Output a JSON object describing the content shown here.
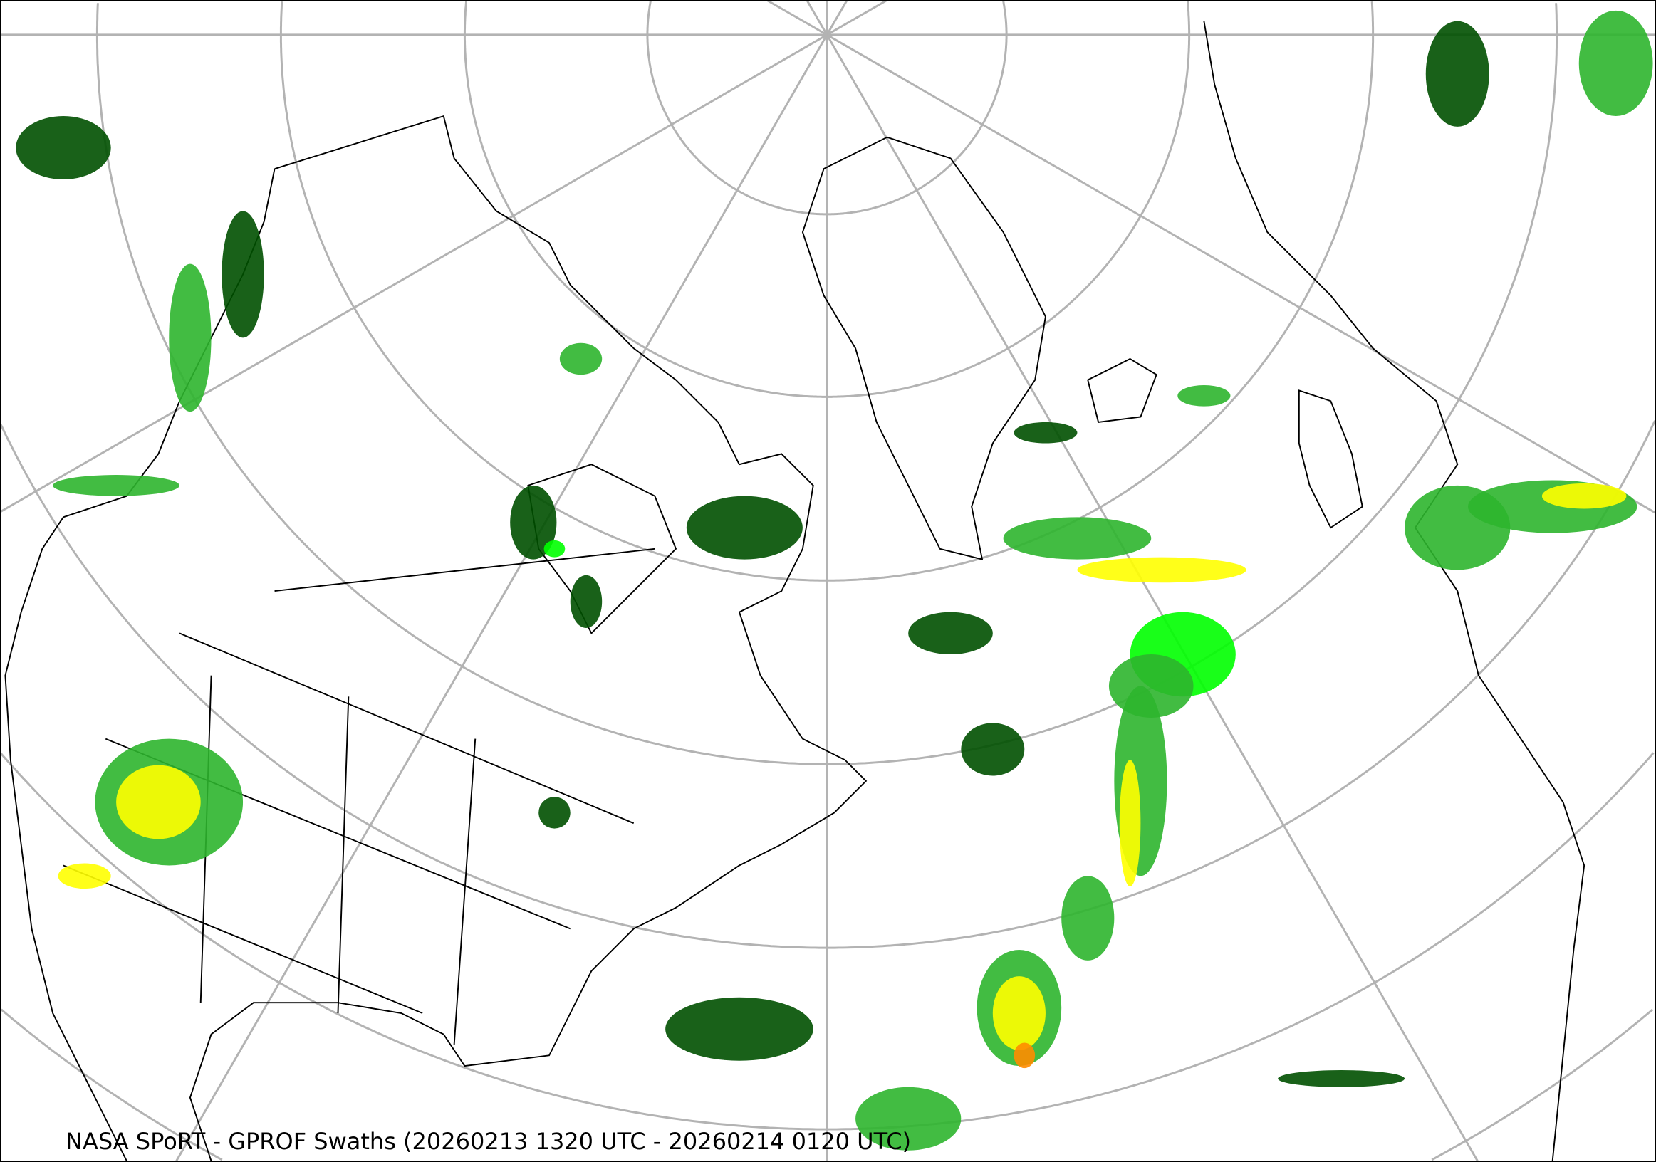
{
  "title": "NASA SPoRT - GPROF Swaths (20260213 1320 UTC - 20260214 0120 UTC)",
  "colors": {
    "graticule": "#b3b3b3",
    "coastline": "#000000",
    "precip_light": "#005000",
    "precip_moderate": "#2db52d",
    "precip_bright": "#00ff00",
    "precip_heavy": "#ffff00",
    "precip_extreme": "#ff8c00"
  }
}
